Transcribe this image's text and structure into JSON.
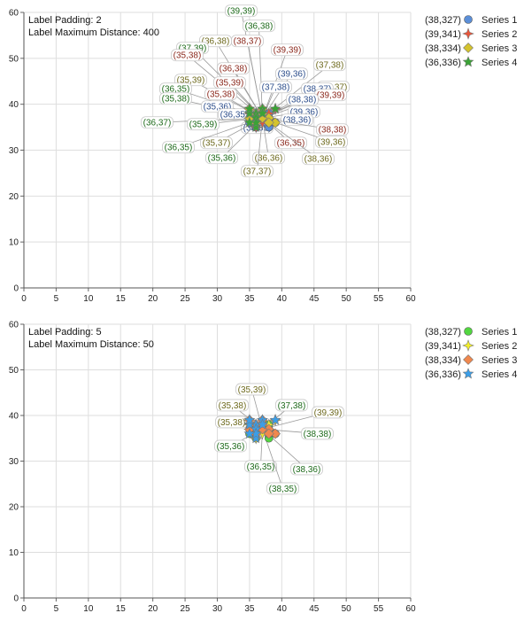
{
  "chart_data": [
    {
      "type": "scatter",
      "annotations": [
        "Label Padding: 2",
        "Label Maximum Distance: 400"
      ],
      "xlim": [
        0,
        60
      ],
      "ylim": [
        0,
        60
      ],
      "x_ticks": [
        0,
        5,
        10,
        15,
        20,
        25,
        30,
        35,
        40,
        45,
        50,
        55,
        60
      ],
      "y_ticks": [
        0,
        10,
        20,
        30,
        40,
        50,
        60
      ],
      "grid": true,
      "legend_position": "right",
      "legend": [
        {
          "value": "(38,327)",
          "name": "Series 1",
          "marker": "circle",
          "color": "#5b8fd8"
        },
        {
          "value": "(39,341)",
          "name": "Series 2",
          "marker": "star4",
          "color": "#e8553a"
        },
        {
          "value": "(38,334)",
          "name": "Series 3",
          "marker": "diamond",
          "color": "#d4c32e"
        },
        {
          "value": "(36,336)",
          "name": "Series 4",
          "marker": "star5",
          "color": "#3aa335"
        }
      ],
      "series": [
        {
          "name": "Series 1",
          "label_color": "#2e4f8c",
          "points": [
            [
              38,
              35
            ],
            [
              38,
              36
            ],
            [
              36,
              35
            ],
            [
              35,
              36
            ],
            [
              39,
              36
            ],
            [
              38,
              37
            ],
            [
              37,
              38
            ],
            [
              38,
              38
            ],
            [
              36,
              36
            ],
            [
              35,
              37
            ]
          ]
        },
        {
          "name": "Series 2",
          "label_color": "#8c2a1e",
          "points": [
            [
              39,
              39
            ],
            [
              38,
              37
            ],
            [
              35,
              38
            ],
            [
              35,
              39
            ],
            [
              36,
              38
            ],
            [
              38,
              38
            ],
            [
              39,
              39
            ],
            [
              36,
              35
            ],
            [
              37,
              36
            ],
            [
              35,
              37
            ]
          ]
        },
        {
          "name": "Series 3",
          "label_color": "#6e6a1e",
          "points": [
            [
              36,
              38
            ],
            [
              35,
              39
            ],
            [
              37,
              38
            ],
            [
              38,
              37
            ],
            [
              39,
              36
            ],
            [
              35,
              37
            ],
            [
              36,
              36
            ],
            [
              38,
              36
            ],
            [
              37,
              37
            ],
            [
              37,
              39
            ]
          ]
        },
        {
          "name": "Series 4",
          "label_color": "#1f6b1c",
          "points": [
            [
              39,
              39
            ],
            [
              36,
              38
            ],
            [
              37,
              39
            ],
            [
              35,
              38
            ],
            [
              36,
              35
            ],
            [
              36,
              37
            ],
            [
              35,
              39
            ],
            [
              36,
              36
            ],
            [
              37,
              38
            ],
            [
              35,
              36
            ]
          ]
        }
      ],
      "point_labels": [
        {
          "text": "(39,39)",
          "series": 3
        },
        {
          "text": "(36,38)",
          "series": 3
        },
        {
          "text": "(36,38)",
          "series": 2
        },
        {
          "text": "(38,37)",
          "series": 1
        },
        {
          "text": "(37,39)",
          "series": 3
        },
        {
          "text": "(39,39)",
          "series": 1
        },
        {
          "text": "(35,38)",
          "series": 1
        },
        {
          "text": "(37,38)",
          "series": 2
        },
        {
          "text": "(36,38)",
          "series": 1
        },
        {
          "text": "(39,36)",
          "series": 0
        },
        {
          "text": "(35,39)",
          "series": 2
        },
        {
          "text": "(35,39)",
          "series": 1
        },
        {
          "text": "(37,38)",
          "series": 0
        },
        {
          "text": "(38,37)",
          "series": 2
        },
        {
          "text": "(38,37)",
          "series": 0
        },
        {
          "text": "(36,35)",
          "series": 3
        },
        {
          "text": "(35,38)",
          "series": 1
        },
        {
          "text": "(39,39)",
          "series": 1
        },
        {
          "text": "(35,38)",
          "series": 3
        },
        {
          "text": "(38,38)",
          "series": 0
        },
        {
          "text": "(35,36)",
          "series": 0
        },
        {
          "text": "(39,36)",
          "series": 0
        },
        {
          "text": "(36,35)",
          "series": 0
        },
        {
          "text": "(38,36)",
          "series": 0
        },
        {
          "text": "(36,37)",
          "series": 3
        },
        {
          "text": "(35,39)",
          "series": 3
        },
        {
          "text": "(38,35)",
          "series": 0
        },
        {
          "text": "(38,38)",
          "series": 1
        },
        {
          "text": "(39,36)",
          "series": 2
        },
        {
          "text": "(35,37)",
          "series": 2
        },
        {
          "text": "(36,35)",
          "series": 1
        },
        {
          "text": "(36,35)",
          "series": 3
        },
        {
          "text": "(35,36)",
          "series": 3
        },
        {
          "text": "(36,36)",
          "series": 2
        },
        {
          "text": "(38,36)",
          "series": 2
        },
        {
          "text": "(37,37)",
          "series": 2
        }
      ]
    },
    {
      "type": "scatter",
      "annotations": [
        "Label Padding: 5",
        "Label Maximum Distance: 50"
      ],
      "xlim": [
        0,
        60
      ],
      "ylim": [
        0,
        60
      ],
      "x_ticks": [
        0,
        5,
        10,
        15,
        20,
        25,
        30,
        35,
        40,
        45,
        50,
        55,
        60
      ],
      "y_ticks": [
        0,
        10,
        20,
        30,
        40,
        50,
        60
      ],
      "grid": true,
      "legend_position": "right",
      "legend": [
        {
          "value": "(38,327)",
          "name": "Series 1",
          "marker": "circle",
          "color": "#52d640"
        },
        {
          "value": "(39,341)",
          "name": "Series 2",
          "marker": "star4",
          "color": "#f2ee2a"
        },
        {
          "value": "(38,334)",
          "name": "Series 3",
          "marker": "diamond",
          "color": "#f0884e"
        },
        {
          "value": "(36,336)",
          "name": "Series 4",
          "marker": "star5",
          "color": "#3b9ee8"
        }
      ],
      "series": [
        {
          "name": "Series 1",
          "label_color": "#1f6b1c",
          "points": [
            [
              38,
              35
            ],
            [
              38,
              36
            ],
            [
              36,
              35
            ],
            [
              35,
              36
            ],
            [
              39,
              36
            ],
            [
              38,
              37
            ],
            [
              37,
              38
            ],
            [
              38,
              38
            ],
            [
              36,
              36
            ],
            [
              35,
              37
            ]
          ]
        },
        {
          "name": "Series 2",
          "label_color": "#6e6a1e",
          "points": [
            [
              39,
              39
            ],
            [
              38,
              37
            ],
            [
              35,
              38
            ],
            [
              35,
              39
            ],
            [
              36,
              38
            ],
            [
              38,
              38
            ],
            [
              39,
              39
            ],
            [
              36,
              35
            ],
            [
              37,
              36
            ],
            [
              35,
              37
            ]
          ]
        },
        {
          "name": "Series 3",
          "label_color": "#8c2a1e",
          "points": [
            [
              36,
              38
            ],
            [
              35,
              39
            ],
            [
              37,
              38
            ],
            [
              38,
              37
            ],
            [
              39,
              36
            ],
            [
              35,
              37
            ],
            [
              36,
              36
            ],
            [
              38,
              36
            ],
            [
              37,
              37
            ],
            [
              37,
              39
            ]
          ]
        },
        {
          "name": "Series 4",
          "label_color": "#2e4f8c",
          "points": [
            [
              39,
              39
            ],
            [
              36,
              38
            ],
            [
              37,
              39
            ],
            [
              35,
              38
            ],
            [
              36,
              35
            ],
            [
              36,
              37
            ],
            [
              35,
              39
            ],
            [
              36,
              36
            ],
            [
              37,
              38
            ],
            [
              35,
              36
            ]
          ]
        }
      ],
      "point_labels": [
        {
          "text": "(35,39)",
          "series": 1
        },
        {
          "text": "(35,38)",
          "series": 1
        },
        {
          "text": "(37,38)",
          "series": 0
        },
        {
          "text": "(39,39)",
          "series": 1
        },
        {
          "text": "(35,38)",
          "series": 1
        },
        {
          "text": "(38,38)",
          "series": 0
        },
        {
          "text": "(35,36)",
          "series": 0
        },
        {
          "text": "(36,35)",
          "series": 0
        },
        {
          "text": "(38,36)",
          "series": 0
        },
        {
          "text": "(38,35)",
          "series": 0
        }
      ]
    }
  ]
}
